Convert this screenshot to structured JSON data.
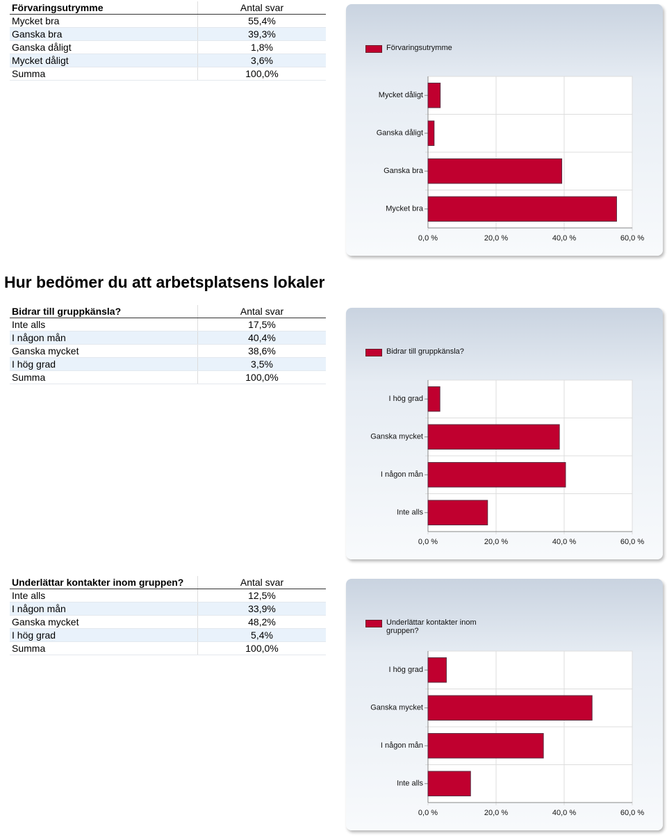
{
  "heading": "Hur bedömer du att arbetsplatsens lokaler",
  "items": [
    {
      "table": {
        "header": [
          "Förvaringsutrymme",
          "Antal svar"
        ],
        "rows": [
          [
            "Mycket bra",
            "55,4%"
          ],
          [
            "Ganska bra",
            "39,3%"
          ],
          [
            "Ganska dåligt",
            "1,8%"
          ],
          [
            "Mycket dåligt",
            "3,6%"
          ],
          [
            "Summa",
            "100,0%"
          ]
        ]
      },
      "chart_data": {
        "type": "bar",
        "orientation": "horizontal",
        "legend": "Förvaringsutrymme",
        "categories": [
          "Mycket bra",
          "Ganska bra",
          "Ganska dåligt",
          "Mycket dåligt"
        ],
        "values": [
          55.4,
          39.3,
          1.8,
          3.6
        ],
        "color": "#c0002f",
        "xlim": [
          0,
          60
        ],
        "xticks": [
          {
            "value": 0,
            "label": "0,0 %"
          },
          {
            "value": 20,
            "label": "20,0 %"
          },
          {
            "value": 40,
            "label": "40,0 %"
          },
          {
            "value": 60,
            "label": "60,0 %"
          }
        ],
        "grid": true
      }
    },
    {
      "table": {
        "header": [
          "Bidrar till gruppkänsla?",
          "Antal svar"
        ],
        "rows": [
          [
            "Inte alls",
            "17,5%"
          ],
          [
            "I någon mån",
            "40,4%"
          ],
          [
            "Ganska mycket",
            "38,6%"
          ],
          [
            "I hög grad",
            "3,5%"
          ],
          [
            "Summa",
            "100,0%"
          ]
        ]
      },
      "chart_data": {
        "type": "bar",
        "orientation": "horizontal",
        "legend": "Bidrar till gruppkänsla?",
        "categories": [
          "Inte alls",
          "I någon mån",
          "Ganska mycket",
          "I hög grad"
        ],
        "values": [
          17.5,
          40.4,
          38.6,
          3.5
        ],
        "color": "#c0002f",
        "xlim": [
          0,
          60
        ],
        "xticks": [
          {
            "value": 0,
            "label": "0,0 %"
          },
          {
            "value": 20,
            "label": "20,0 %"
          },
          {
            "value": 40,
            "label": "40,0 %"
          },
          {
            "value": 60,
            "label": "60,0 %"
          }
        ],
        "grid": true
      }
    },
    {
      "table": {
        "header": [
          "Underlättar kontakter inom gruppen?",
          "Antal svar"
        ],
        "rows": [
          [
            "Inte alls",
            "12,5%"
          ],
          [
            "I någon mån",
            "33,9%"
          ],
          [
            "Ganska mycket",
            "48,2%"
          ],
          [
            "I hög grad",
            "5,4%"
          ],
          [
            "Summa",
            "100,0%"
          ]
        ]
      },
      "chart_data": {
        "type": "bar",
        "orientation": "horizontal",
        "legend": "Underlättar kontakter inom gruppen?",
        "categories": [
          "Inte alls",
          "I någon mån",
          "Ganska mycket",
          "I hög grad"
        ],
        "values": [
          12.5,
          33.9,
          48.2,
          5.4
        ],
        "color": "#c0002f",
        "xlim": [
          0,
          60
        ],
        "xticks": [
          {
            "value": 0,
            "label": "0,0 %"
          },
          {
            "value": 20,
            "label": "20,0 %"
          },
          {
            "value": 40,
            "label": "40,0 %"
          },
          {
            "value": 60,
            "label": "60,0 %"
          }
        ],
        "grid": true
      }
    }
  ]
}
